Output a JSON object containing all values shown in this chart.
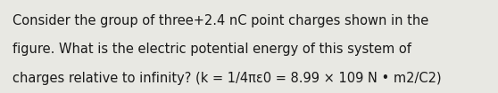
{
  "text_lines": [
    "Consider the group of three+2.4 nC point charges shown in the",
    "figure. What is the electric potential energy of this system of",
    "charges relative to infinity? (k = 1/4πε0 = 8.99 × 109 N • m2/C2)"
  ],
  "background_color": "#e8e8e3",
  "text_color": "#1a1a1a",
  "font_size": 10.5,
  "fig_width": 5.58,
  "fig_height": 1.05,
  "font_weight": "normal"
}
